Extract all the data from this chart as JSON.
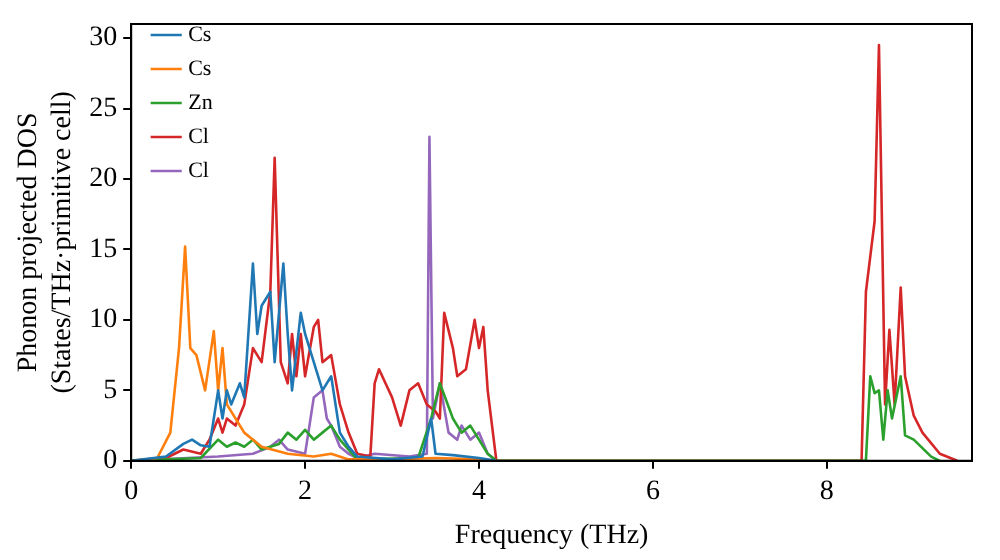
{
  "chart_data": {
    "type": "line",
    "xlabel": "Frequency (THz)",
    "ylabel": "Phonon projected DOS\n(States/THz·primitive cell)",
    "xlim": [
      0,
      9.67
    ],
    "xticks": [
      0,
      2,
      4,
      6,
      8
    ],
    "ylim": [
      0,
      31
    ],
    "yticks": [
      0,
      5,
      10,
      15,
      20,
      25,
      30
    ],
    "grid": false,
    "legend": "top left",
    "marker": "none",
    "line_style": "solid",
    "series": [
      {
        "name": "Cs",
        "color": "#1f77b4",
        "x": [
          0,
          0.4,
          0.6,
          0.7,
          0.8,
          0.9,
          1.0,
          1.05,
          1.1,
          1.15,
          1.25,
          1.3,
          1.4,
          1.45,
          1.5,
          1.6,
          1.65,
          1.75,
          1.8,
          1.85,
          1.95,
          2.0,
          2.1,
          2.2,
          2.3,
          2.4,
          2.5,
          2.6,
          3.0,
          3.35,
          3.45,
          3.5,
          3.7,
          4.0,
          4.2
        ],
        "values": [
          0,
          0.3,
          1.2,
          1.5,
          1.1,
          1,
          5,
          3,
          5,
          4,
          5.5,
          4.5,
          14,
          9,
          11,
          12,
          7,
          14,
          9,
          5,
          10.5,
          9,
          7,
          5,
          6,
          2,
          1,
          0.3,
          0.1,
          0.3,
          3,
          0.5,
          0.4,
          0.2,
          0
        ]
      },
      {
        "name": "Cs",
        "color": "#ff7f0e",
        "x": [
          0,
          0.3,
          0.45,
          0.55,
          0.62,
          0.68,
          0.75,
          0.85,
          0.95,
          1.0,
          1.05,
          1.1,
          1.2,
          1.3,
          1.4,
          1.5,
          1.8,
          2.1,
          2.3,
          2.5,
          3.0,
          3.5,
          4.0,
          4.2
        ],
        "values": [
          0,
          0.2,
          2,
          8,
          15.2,
          8,
          7.5,
          5,
          9.2,
          5,
          8,
          4,
          3,
          2,
          1.5,
          1,
          0.5,
          0.3,
          0.5,
          0.1,
          0.1,
          0.2,
          0.1,
          0
        ]
      },
      {
        "name": "Zn",
        "color": "#2ca02c",
        "x": [
          0,
          0.8,
          1.0,
          1.1,
          1.2,
          1.3,
          1.4,
          1.5,
          1.7,
          1.8,
          1.9,
          2.0,
          2.1,
          2.2,
          2.3,
          2.4,
          2.5,
          2.6,
          3.3,
          3.45,
          3.55,
          3.7,
          3.8,
          3.9,
          4.0,
          4.1,
          4.2,
          8.45,
          8.5,
          8.55,
          8.6,
          8.65,
          8.7,
          8.75,
          8.85,
          8.9,
          9.0,
          9.2,
          9.3
        ],
        "values": [
          0,
          0.2,
          1.5,
          1,
          1.3,
          1,
          1.5,
          0.8,
          1.2,
          2,
          1.5,
          2.2,
          1.5,
          2,
          2.5,
          1.5,
          0.8,
          0.1,
          0.2,
          3,
          5.5,
          3,
          2,
          2.5,
          1.5,
          0.5,
          0,
          0,
          6,
          4.8,
          5,
          1.5,
          5,
          3,
          6,
          1.8,
          1.5,
          0.3,
          0
        ]
      },
      {
        "name": "Cl",
        "color": "#d62728",
        "x": [
          0,
          0.4,
          0.6,
          0.8,
          0.9,
          1.0,
          1.05,
          1.1,
          1.2,
          1.3,
          1.4,
          1.5,
          1.6,
          1.65,
          1.72,
          1.8,
          1.85,
          1.9,
          1.95,
          2.0,
          2.1,
          2.15,
          2.2,
          2.3,
          2.4,
          2.5,
          2.6,
          2.75,
          2.8,
          2.85,
          3.0,
          3.1,
          3.2,
          3.3,
          3.4,
          3.5,
          3.55,
          3.6,
          3.7,
          3.75,
          3.85,
          3.95,
          4.0,
          4.05,
          4.1,
          4.2,
          8.4,
          8.45,
          8.55,
          8.6,
          8.67,
          8.72,
          8.78,
          8.85,
          8.9,
          9.0,
          9.1,
          9.3,
          9.5
        ],
        "values": [
          0,
          0.2,
          0.8,
          0.5,
          1.5,
          3,
          2,
          3,
          2.5,
          4,
          8,
          7,
          12,
          21.5,
          7,
          5.5,
          9,
          6,
          9,
          6,
          9.5,
          10,
          7,
          7.5,
          4,
          2,
          0.5,
          0.3,
          5.5,
          6.5,
          4.5,
          2.5,
          5,
          5.5,
          4,
          3.5,
          3,
          10.5,
          8,
          6,
          6.5,
          10,
          8,
          9.5,
          5,
          0,
          0,
          12,
          17,
          29.5,
          4,
          9.3,
          4,
          12.3,
          6,
          3.2,
          2,
          0.5,
          0
        ]
      },
      {
        "name": "Cl",
        "color": "#9467bd",
        "x": [
          0,
          1.0,
          1.4,
          1.6,
          1.7,
          1.8,
          2.0,
          2.1,
          2.2,
          2.25,
          2.3,
          2.4,
          2.5,
          2.6,
          2.8,
          3.2,
          3.4,
          3.43,
          3.47,
          3.55,
          3.65,
          3.75,
          3.8,
          3.9,
          4.0,
          4.1,
          4.2
        ],
        "values": [
          0,
          0.3,
          0.5,
          1,
          1.5,
          0.8,
          0.5,
          4.5,
          5,
          3,
          2.5,
          1,
          0.5,
          0.2,
          0.5,
          0.3,
          0.5,
          23,
          3,
          5.5,
          2,
          1.5,
          2.5,
          1.5,
          2,
          0.5,
          0
        ]
      }
    ]
  }
}
